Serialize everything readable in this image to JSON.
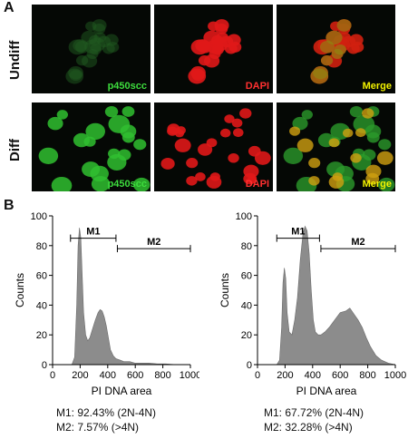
{
  "panel_a": {
    "letter": "A",
    "rows": [
      {
        "label": "Undiff",
        "tiles": [
          {
            "label": "p450scc",
            "label_color": "#3ddc3d",
            "kind": "green-dim"
          },
          {
            "label": "DAPI",
            "label_color": "#ff3030",
            "kind": "red"
          },
          {
            "label": "Merge",
            "label_color": "#f2f200",
            "kind": "merge-dim"
          }
        ]
      },
      {
        "label": "Diff",
        "tiles": [
          {
            "label": "p450scc",
            "label_color": "#3ddc3d",
            "kind": "green-bright"
          },
          {
            "label": "DAPI",
            "label_color": "#ff3030",
            "kind": "red"
          },
          {
            "label": "Merge",
            "label_color": "#f2f200",
            "kind": "merge-bright"
          }
        ]
      }
    ]
  },
  "panel_b": {
    "letter": "B",
    "stats": [
      {
        "m1": "M1: 92.43% (2N-4N)",
        "m2": "M2: 7.57% (>4N)"
      },
      {
        "m1": "M1: 67.72% (2N-4N)",
        "m2": "M2: 32.28% (>4N)"
      }
    ]
  },
  "chart_data": [
    {
      "type": "area",
      "xlabel": "PI DNA area",
      "ylabel": "Counts",
      "xlim": [
        0,
        1000
      ],
      "ylim": [
        0,
        100
      ],
      "xticks": [
        0,
        200,
        400,
        600,
        800,
        1000
      ],
      "yticks": [
        0,
        20,
        40,
        60,
        80,
        100
      ],
      "fill_color": "#8c8c8c",
      "markers": [
        {
          "name": "M1",
          "x_start": 130,
          "x_end": 460,
          "y": 85
        },
        {
          "name": "M2",
          "x_start": 470,
          "x_end": 1000,
          "y": 78
        }
      ],
      "x": [
        140,
        160,
        175,
        185,
        195,
        205,
        215,
        225,
        240,
        255,
        270,
        290,
        310,
        330,
        345,
        360,
        375,
        390,
        405,
        420,
        440,
        460,
        490,
        520,
        560,
        600,
        650,
        700,
        760,
        820,
        900,
        1000
      ],
      "y": [
        0,
        5,
        40,
        80,
        92,
        85,
        60,
        35,
        20,
        16,
        18,
        24,
        30,
        35,
        37,
        36,
        32,
        26,
        18,
        10,
        6,
        4,
        3,
        2,
        2,
        1,
        1,
        1,
        0.5,
        0.5,
        0,
        0
      ]
    },
    {
      "type": "area",
      "xlabel": "PI DNA area",
      "ylabel": "Counts",
      "xlim": [
        0,
        1000
      ],
      "ylim": [
        0,
        100
      ],
      "xticks": [
        0,
        200,
        400,
        600,
        800,
        1000
      ],
      "yticks": [
        0,
        20,
        40,
        60,
        80,
        100
      ],
      "fill_color": "#8c8c8c",
      "markers": [
        {
          "name": "M1",
          "x_start": 140,
          "x_end": 450,
          "y": 85
        },
        {
          "name": "M2",
          "x_start": 460,
          "x_end": 1000,
          "y": 78
        }
      ],
      "x": [
        140,
        160,
        175,
        185,
        195,
        205,
        215,
        230,
        250,
        270,
        290,
        310,
        330,
        345,
        360,
        375,
        390,
        405,
        420,
        440,
        460,
        490,
        520,
        560,
        600,
        640,
        670,
        700,
        730,
        760,
        790,
        820,
        860,
        900,
        950,
        1000
      ],
      "y": [
        0,
        3,
        25,
        55,
        65,
        58,
        35,
        22,
        20,
        30,
        45,
        70,
        88,
        93,
        90,
        75,
        50,
        30,
        22,
        20,
        20,
        22,
        25,
        30,
        35,
        36,
        38,
        34,
        30,
        25,
        18,
        12,
        6,
        3,
        1,
        0
      ]
    }
  ]
}
